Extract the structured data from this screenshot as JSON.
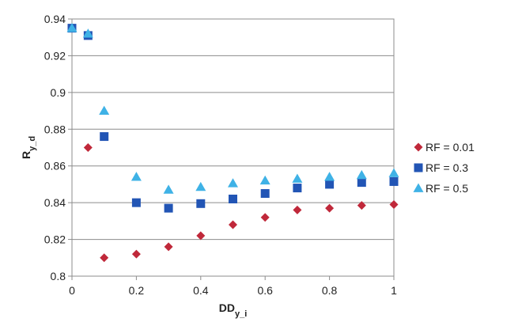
{
  "chart_data": {
    "type": "scatter",
    "title": "",
    "xlabel_main": "DD",
    "xlabel_sub": "y_i",
    "ylabel_main": "R",
    "ylabel_sub": "y_d",
    "xlim": [
      0,
      1
    ],
    "ylim": [
      0.8,
      0.94
    ],
    "x_ticks": [
      0,
      0.2,
      0.4,
      0.6,
      0.8,
      1
    ],
    "x_tick_labels": [
      "0",
      "0.2",
      "0.4",
      "0.6",
      "0.8",
      "1"
    ],
    "y_ticks": [
      0.8,
      0.82,
      0.84,
      0.86,
      0.88,
      0.9,
      0.92,
      0.94
    ],
    "y_tick_labels": [
      "0.8",
      "0.82",
      "0.84",
      "0.86",
      "0.88",
      "0.9",
      "0.92",
      "0.94"
    ],
    "grid": "horizontal",
    "legend_position": "right",
    "series": [
      {
        "name": "RF = 0.01",
        "marker": "diamond",
        "color": "#c0283a",
        "x": [
          0.05,
          0.1,
          0.2,
          0.3,
          0.4,
          0.5,
          0.6,
          0.7,
          0.8,
          0.9,
          1.0
        ],
        "y": [
          0.87,
          0.81,
          0.812,
          0.816,
          0.822,
          0.828,
          0.832,
          0.836,
          0.837,
          0.8385,
          0.839
        ]
      },
      {
        "name": "RF = 0.3",
        "marker": "square",
        "color": "#2255b5",
        "x": [
          0,
          0.05,
          0.1,
          0.2,
          0.3,
          0.4,
          0.5,
          0.6,
          0.7,
          0.8,
          0.9,
          1.0
        ],
        "y": [
          0.935,
          0.931,
          0.876,
          0.84,
          0.837,
          0.8395,
          0.842,
          0.845,
          0.848,
          0.85,
          0.851,
          0.8515
        ]
      },
      {
        "name": "RF = 0.5",
        "marker": "triangle",
        "color": "#3fb2e6",
        "x": [
          0,
          0.05,
          0.1,
          0.2,
          0.3,
          0.4,
          0.5,
          0.6,
          0.7,
          0.8,
          0.9,
          1.0
        ],
        "y": [
          0.935,
          0.932,
          0.89,
          0.854,
          0.847,
          0.8485,
          0.8505,
          0.852,
          0.853,
          0.854,
          0.855,
          0.856
        ]
      }
    ]
  }
}
